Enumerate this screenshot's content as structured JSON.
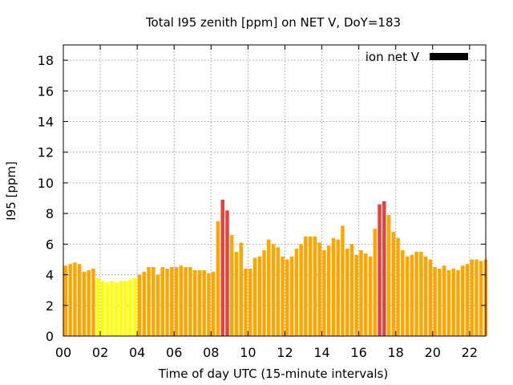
{
  "chart_data": {
    "type": "bar",
    "title": "Total I95 zenith [ppm] on NET V, DoY=183",
    "xlabel": "Time of day UTC (15-minute intervals)",
    "ylabel": "I95 [ppm]",
    "ylim": [
      0,
      19
    ],
    "xlim": [
      0,
      22.875
    ],
    "yticks": [
      0,
      2,
      4,
      6,
      8,
      10,
      12,
      14,
      16,
      18
    ],
    "xticks": [
      0,
      2,
      4,
      6,
      8,
      10,
      12,
      14,
      16,
      18,
      20,
      22
    ],
    "xtick_labels": [
      "00",
      "02",
      "04",
      "06",
      "08",
      "10",
      "12",
      "14",
      "16",
      "18",
      "20",
      "22"
    ],
    "interval_hours": 0.25,
    "grid": true,
    "legend": {
      "position": "top-right",
      "label": "ion net V",
      "color": "#000000"
    },
    "color_scale": [
      {
        "max": 4,
        "color": "#ffff00"
      },
      {
        "max": 8,
        "color": "#ffa500"
      },
      {
        "max": 99,
        "color": "#e8413d"
      }
    ],
    "values": [
      4.6,
      4.7,
      4.8,
      4.7,
      4.2,
      4.3,
      4.4,
      3.8,
      3.6,
      3.5,
      3.6,
      3.5,
      3.6,
      3.6,
      3.7,
      3.8,
      4.0,
      4.2,
      4.5,
      4.5,
      4.0,
      4.5,
      4.4,
      4.5,
      4.5,
      4.6,
      4.5,
      4.5,
      4.3,
      4.3,
      4.3,
      4.1,
      4.2,
      7.5,
      8.9,
      8.2,
      6.6,
      5.5,
      6.1,
      4.4,
      4.4,
      5.1,
      5.2,
      5.6,
      6.3,
      6.0,
      5.8,
      5.2,
      5.0,
      5.2,
      5.7,
      6.0,
      6.5,
      6.5,
      6.5,
      6.1,
      5.6,
      5.9,
      6.4,
      6.3,
      7.2,
      5.7,
      6.0,
      5.3,
      5.6,
      5.4,
      5.2,
      7.0,
      8.6,
      8.8,
      7.9,
      6.8,
      6.4,
      5.6,
      5.2,
      5.3,
      5.5,
      5.5,
      5.2,
      5.0,
      4.5,
      4.4,
      4.6,
      4.3,
      4.4,
      4.3,
      4.6,
      4.7,
      5.0,
      5.0,
      4.9,
      5.0
    ]
  }
}
